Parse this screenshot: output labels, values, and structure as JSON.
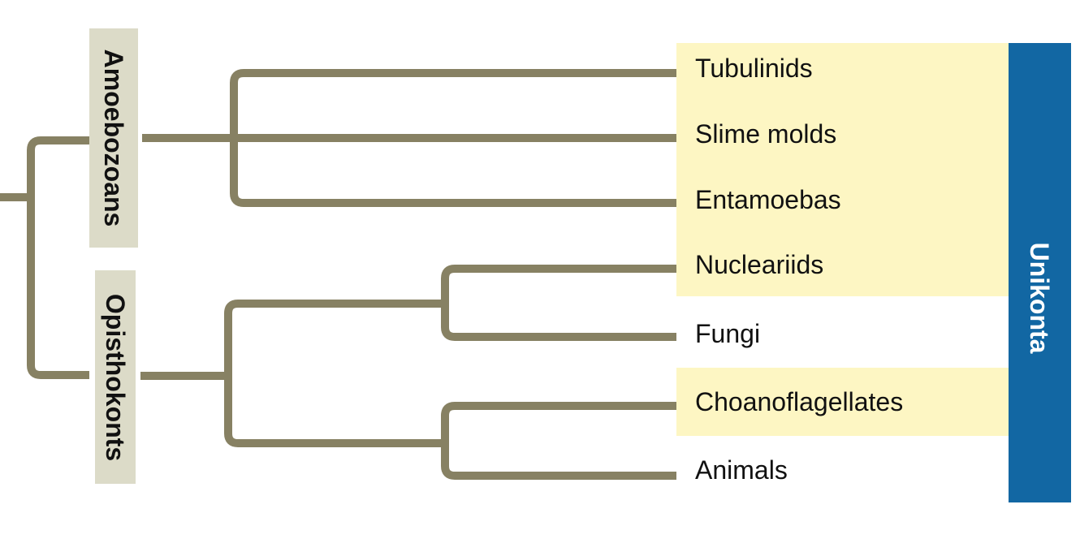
{
  "colors": {
    "branch": "#878163",
    "highlight": "#fdf6c3",
    "group_box": "#dcdbc8",
    "clade_bar": "#1267a3",
    "text": "#111111",
    "clade_text": "#ffffff"
  },
  "groups": {
    "amoebozoans": "Amoebozoans",
    "opisthokonts": "Opisthokonts"
  },
  "taxa": [
    {
      "label": "Tubulinids",
      "highlighted": true
    },
    {
      "label": "Slime molds",
      "highlighted": true
    },
    {
      "label": "Entamoebas",
      "highlighted": true
    },
    {
      "label": "Nucleariids",
      "highlighted": true
    },
    {
      "label": "Fungi",
      "highlighted": false
    },
    {
      "label": "Choanoflagellates",
      "highlighted": true
    },
    {
      "label": "Animals",
      "highlighted": false
    }
  ],
  "clade": {
    "label": "Unikonta"
  }
}
